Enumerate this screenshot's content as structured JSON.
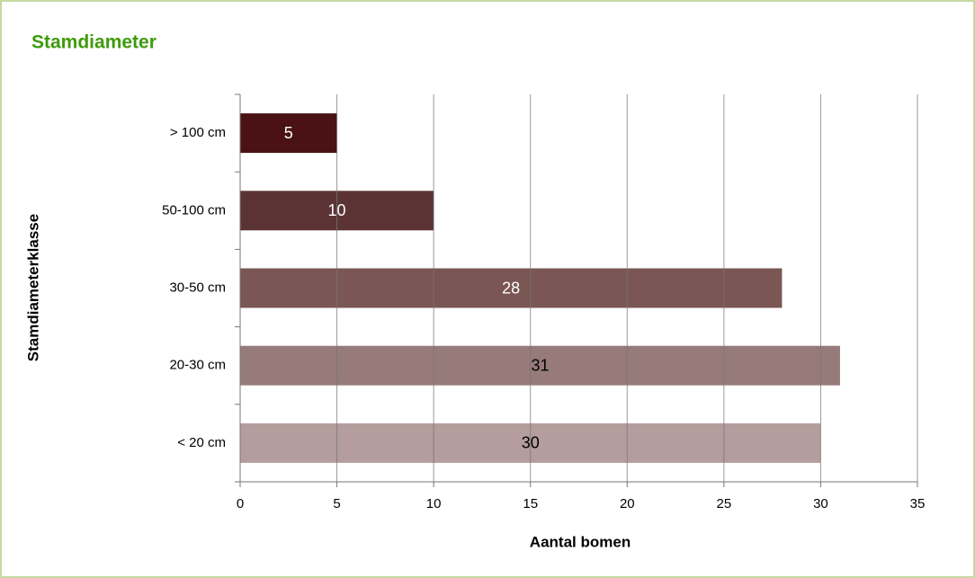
{
  "chart_data": {
    "type": "barh",
    "title": "Stamdiameter",
    "xlabel": "Aantal bomen",
    "ylabel": "Stamdiameterklasse",
    "categories": [
      "> 100 cm",
      "50-100 cm",
      "30-50 cm",
      "20-30 cm",
      "< 20 cm"
    ],
    "values": [
      5,
      10,
      28,
      31,
      30
    ],
    "colors": [
      "#4a1215",
      "#5c3335",
      "#7a5655",
      "#967b7a",
      "#b49d9c"
    ],
    "xlim": [
      0,
      35
    ],
    "xticks": [
      0,
      5,
      10,
      15,
      20,
      25,
      30,
      35
    ],
    "grid": true
  }
}
